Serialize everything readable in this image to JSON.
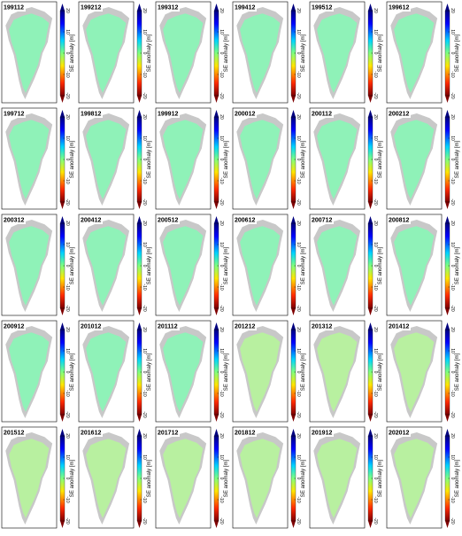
{
  "panels": [
    "199112",
    "199212",
    "199312",
    "199412",
    "199512",
    "199612",
    "199712",
    "199812",
    "199912",
    "200012",
    "200112",
    "200212",
    "200312",
    "200412",
    "200512",
    "200612",
    "200712",
    "200812",
    "200912",
    "201012",
    "201112",
    "201212",
    "201312",
    "201412",
    "201512",
    "201612",
    "201712",
    "201812",
    "201912",
    "202012"
  ],
  "colorbar": {
    "label": "SE anomaly [m]",
    "lim": [
      -20,
      20
    ],
    "ticks": [
      20,
      10,
      0,
      -10,
      -20
    ]
  }
}
